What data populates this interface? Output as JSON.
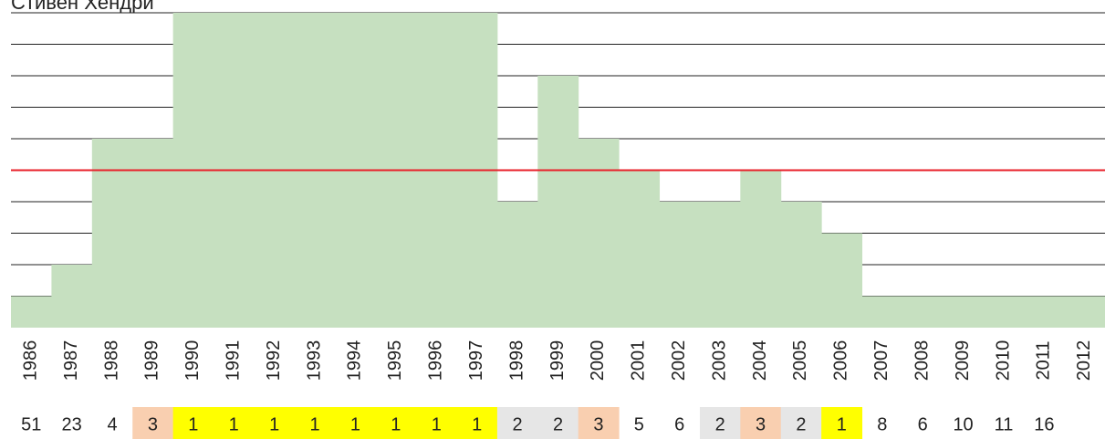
{
  "chart_data": {
    "type": "step_area",
    "title": "Стивен Хендри",
    "categories": [
      "1986",
      "1987",
      "1988",
      "1989",
      "1990",
      "1991",
      "1992",
      "1993",
      "1994",
      "1995",
      "1996",
      "1997",
      "1998",
      "1999",
      "2000",
      "2001",
      "2002",
      "2003",
      "2004",
      "2005",
      "2006",
      "2007",
      "2008",
      "2009",
      "2010",
      "2011",
      "2012"
    ],
    "values": [
      1,
      2,
      6,
      6,
      10,
      10,
      10,
      10,
      10,
      10,
      10,
      10,
      4,
      8,
      6,
      5,
      4,
      4,
      5,
      4,
      3,
      1,
      1,
      1,
      1,
      1,
      1
    ],
    "color": "#c6e0c0",
    "ylim": [
      0,
      10
    ],
    "yticks": [
      1,
      2,
      3,
      4,
      5,
      6,
      7,
      8,
      9,
      10
    ],
    "grid": true,
    "reference_line": {
      "value": 5,
      "color": "#e8202a"
    },
    "ranks": [
      51,
      23,
      4,
      3,
      1,
      1,
      1,
      1,
      1,
      1,
      1,
      1,
      2,
      2,
      3,
      5,
      6,
      2,
      3,
      2,
      1,
      8,
      6,
      10,
      11,
      16,
      null
    ],
    "rank_colors": {
      "1": "#ffff00",
      "2": "#e6e6e6",
      "3": "#f9cfb0"
    }
  }
}
